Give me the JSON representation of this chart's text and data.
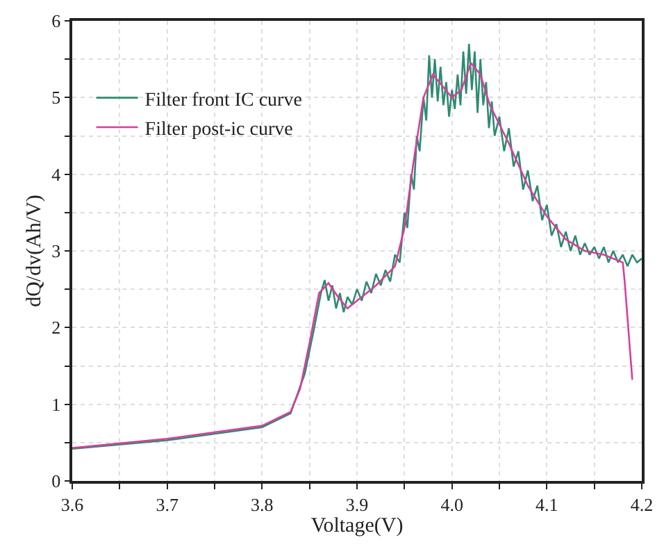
{
  "chart_data": {
    "type": "line",
    "xlabel": "Voltage(V)",
    "ylabel": "dQ/dv(Ah/V)",
    "xlim": [
      3.6,
      4.2
    ],
    "ylim": [
      0,
      6
    ],
    "xticks": [
      3.6,
      {
        "value": 3.65,
        "label": null
      },
      3.7,
      {
        "value": 3.75,
        "label": null
      },
      3.8,
      {
        "value": 3.85,
        "label": null
      },
      3.9,
      {
        "value": 3.95,
        "label": null
      },
      {
        "value": 4.0,
        "label": "4.0"
      },
      {
        "value": 4.05,
        "label": null
      },
      4.1,
      {
        "value": 4.15,
        "label": null
      },
      4.2
    ],
    "yticks": [
      0,
      {
        "value": 0.5,
        "label": null
      },
      1,
      {
        "value": 1.5,
        "label": null
      },
      2,
      {
        "value": 2.5,
        "label": null
      },
      3,
      {
        "value": 3.5,
        "label": null
      },
      4,
      {
        "value": 4.5,
        "label": null
      },
      5,
      {
        "value": 5.5,
        "label": null
      },
      6
    ],
    "grid": true,
    "legend": "top left",
    "marker": "none",
    "line_style": "solid",
    "series": [
      {
        "name": "Filter front IC curve",
        "color": "#2e8b70",
        "x": [
          3.6,
          3.7,
          3.8,
          3.83,
          3.845,
          3.855,
          3.862,
          3.866,
          3.87,
          3.874,
          3.878,
          3.882,
          3.886,
          3.89,
          3.895,
          3.9,
          3.905,
          3.91,
          3.915,
          3.92,
          3.925,
          3.93,
          3.935,
          3.94,
          3.945,
          3.95,
          3.953,
          3.957,
          3.96,
          3.963,
          3.966,
          3.97,
          3.973,
          3.976,
          3.979,
          3.982,
          3.985,
          3.988,
          3.991,
          3.994,
          3.997,
          4.0,
          4.003,
          4.006,
          4.009,
          4.012,
          4.015,
          4.018,
          4.021,
          4.024,
          4.027,
          4.03,
          4.033,
          4.036,
          4.039,
          4.042,
          4.045,
          4.05,
          4.055,
          4.06,
          4.065,
          4.07,
          4.075,
          4.08,
          4.085,
          4.09,
          4.095,
          4.1,
          4.105,
          4.11,
          4.115,
          4.12,
          4.125,
          4.13,
          4.135,
          4.14,
          4.145,
          4.15,
          4.155,
          4.16,
          4.165,
          4.17,
          4.175,
          4.18,
          4.185,
          4.19,
          4.195,
          4.2
        ],
        "values": [
          0.42,
          0.53,
          0.7,
          0.88,
          1.4,
          2.0,
          2.45,
          2.62,
          2.35,
          2.55,
          2.25,
          2.45,
          2.2,
          2.4,
          2.3,
          2.5,
          2.35,
          2.6,
          2.45,
          2.7,
          2.55,
          2.75,
          2.6,
          2.95,
          2.85,
          3.5,
          3.3,
          4.0,
          3.8,
          4.5,
          4.3,
          5.0,
          4.7,
          5.55,
          5.0,
          5.5,
          4.95,
          5.4,
          4.9,
          5.2,
          4.75,
          5.1,
          4.85,
          5.3,
          4.9,
          5.6,
          5.05,
          5.7,
          5.1,
          5.6,
          4.8,
          5.5,
          4.9,
          5.2,
          4.6,
          4.95,
          4.5,
          4.75,
          4.3,
          4.6,
          4.1,
          4.3,
          3.8,
          4.05,
          3.65,
          3.85,
          3.4,
          3.6,
          3.2,
          3.35,
          3.05,
          3.25,
          3.0,
          3.2,
          2.95,
          3.1,
          2.95,
          3.05,
          2.9,
          3.05,
          2.85,
          3.0,
          2.85,
          2.95,
          2.8,
          2.95,
          2.85,
          2.9
        ]
      },
      {
        "name": "Filter post-ic curve",
        "color": "#d63fa0",
        "x": [
          3.6,
          3.7,
          3.8,
          3.83,
          3.84,
          3.85,
          3.86,
          3.87,
          3.88,
          3.89,
          3.9,
          3.92,
          3.94,
          3.95,
          3.96,
          3.97,
          3.98,
          3.99,
          4.0,
          4.01,
          4.02,
          4.03,
          4.04,
          4.06,
          4.08,
          4.1,
          4.12,
          4.14,
          4.16,
          4.18,
          4.182,
          4.19
        ],
        "values": [
          0.43,
          0.55,
          0.72,
          0.9,
          1.2,
          1.8,
          2.45,
          2.58,
          2.4,
          2.25,
          2.35,
          2.55,
          2.8,
          3.3,
          4.2,
          5.0,
          5.3,
          5.15,
          5.0,
          5.1,
          5.45,
          5.3,
          4.9,
          4.4,
          3.85,
          3.45,
          3.15,
          3.0,
          2.95,
          2.85,
          2.6,
          1.32
        ]
      }
    ]
  }
}
